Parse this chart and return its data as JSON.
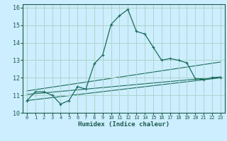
{
  "title": "",
  "xlabel": "Humidex (Indice chaleur)",
  "ylabel": "",
  "bg_color": "#cceeff",
  "plot_bg_color": "#cceeff",
  "grid_color": "#b0d4c8",
  "line_color": "#1a6b5a",
  "xlim": [
    -0.5,
    23.5
  ],
  "ylim": [
    10,
    16.2
  ],
  "xticks": [
    0,
    1,
    2,
    3,
    4,
    5,
    6,
    7,
    8,
    9,
    10,
    11,
    12,
    13,
    14,
    15,
    16,
    17,
    18,
    19,
    20,
    21,
    22,
    23
  ],
  "yticks": [
    10,
    11,
    12,
    13,
    14,
    15,
    16
  ],
  "line1_x": [
    0,
    1,
    2,
    3,
    4,
    5,
    6,
    7,
    8,
    9,
    10,
    11,
    12,
    13,
    14,
    15,
    16,
    17,
    18,
    19,
    20,
    21,
    22,
    23
  ],
  "line1_y": [
    10.7,
    11.2,
    11.2,
    11.0,
    10.5,
    10.7,
    11.5,
    11.35,
    12.8,
    13.3,
    15.05,
    15.55,
    15.9,
    14.65,
    14.5,
    13.75,
    13.0,
    13.1,
    13.0,
    12.85,
    11.95,
    11.9,
    12.0,
    12.0
  ],
  "line2_x": [
    0,
    23
  ],
  "line2_y": [
    10.7,
    12.0
  ],
  "line3_x": [
    0,
    23
  ],
  "line3_y": [
    11.05,
    12.05
  ],
  "line4_x": [
    0,
    23
  ],
  "line4_y": [
    11.25,
    12.9
  ]
}
